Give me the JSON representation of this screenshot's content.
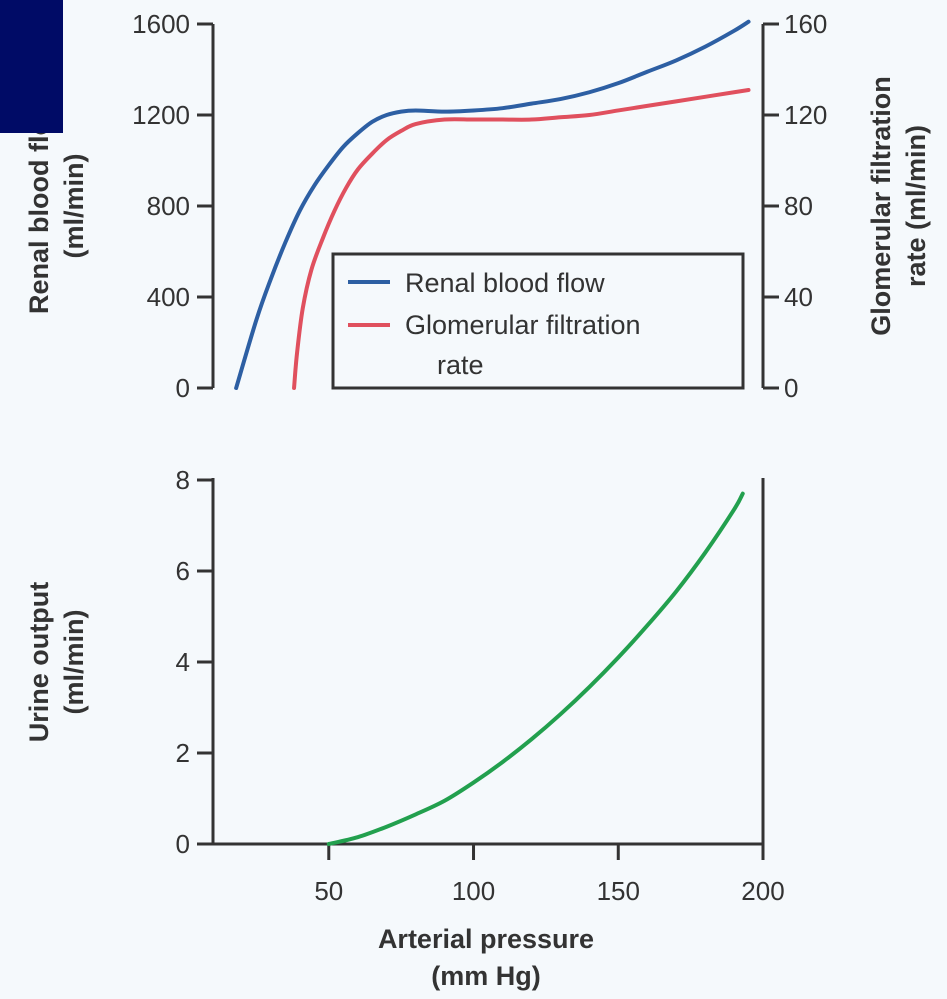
{
  "overlay_color": "#000b66",
  "chart_data": [
    {
      "type": "line",
      "ylabel_left": [
        "Renal blood flow",
        "(ml/min)"
      ],
      "ylabel_right": [
        "Glomerular filtration",
        "rate (ml/min)"
      ],
      "xlim": [
        10,
        200
      ],
      "ylim_left": [
        0,
        1600
      ],
      "ylim_right": [
        0,
        160
      ],
      "yticks_left": [
        0,
        400,
        800,
        1200,
        1600
      ],
      "yticks_right": [
        0,
        40,
        80,
        120,
        160
      ],
      "legend": {
        "placement": "lower-right",
        "items": [
          {
            "label": "Renal blood flow",
            "color": "#2d5fa3"
          },
          {
            "label": "Glomerular filtration",
            "label_line2": "rate",
            "color": "#e0505e"
          }
        ]
      },
      "series": [
        {
          "name": "Renal blood flow",
          "axis": "left",
          "color": "#2d5fa3",
          "x": [
            18,
            25,
            30,
            35,
            40,
            45,
            50,
            55,
            60,
            65,
            70,
            75,
            80,
            90,
            100,
            110,
            120,
            130,
            140,
            150,
            160,
            170,
            180,
            190,
            195
          ],
          "y": [
            0,
            300,
            480,
            640,
            780,
            890,
            980,
            1060,
            1120,
            1170,
            1200,
            1215,
            1220,
            1215,
            1220,
            1230,
            1250,
            1270,
            1300,
            1340,
            1390,
            1440,
            1500,
            1570,
            1610
          ]
        },
        {
          "name": "Glomerular filtration rate",
          "axis": "right",
          "color": "#e0505e",
          "x": [
            38,
            39,
            41,
            44,
            48,
            52,
            56,
            60,
            65,
            70,
            75,
            80,
            90,
            100,
            110,
            120,
            130,
            140,
            150,
            160,
            170,
            180,
            190,
            195
          ],
          "y": [
            0,
            15,
            35,
            52,
            66,
            78,
            88,
            96,
            103,
            109,
            113,
            116,
            118,
            118,
            118,
            118,
            119,
            120,
            122,
            124,
            126,
            128,
            130,
            131
          ]
        }
      ]
    },
    {
      "type": "line",
      "ylabel": [
        "Urine output",
        "(ml/min)"
      ],
      "xlabel": [
        "Arterial pressure",
        "(mm Hg)"
      ],
      "xlim": [
        10,
        200
      ],
      "ylim": [
        0,
        8
      ],
      "xticks": [
        50,
        100,
        150,
        200
      ],
      "yticks": [
        0,
        2,
        4,
        6,
        8
      ],
      "series": [
        {
          "name": "Urine output",
          "color": "#22a04e",
          "x": [
            50,
            60,
            70,
            80,
            90,
            100,
            110,
            120,
            130,
            140,
            150,
            160,
            170,
            180,
            190,
            193
          ],
          "y": [
            0,
            0.15,
            0.38,
            0.65,
            0.95,
            1.35,
            1.8,
            2.3,
            2.85,
            3.45,
            4.1,
            4.8,
            5.55,
            6.4,
            7.35,
            7.7
          ]
        }
      ]
    }
  ]
}
